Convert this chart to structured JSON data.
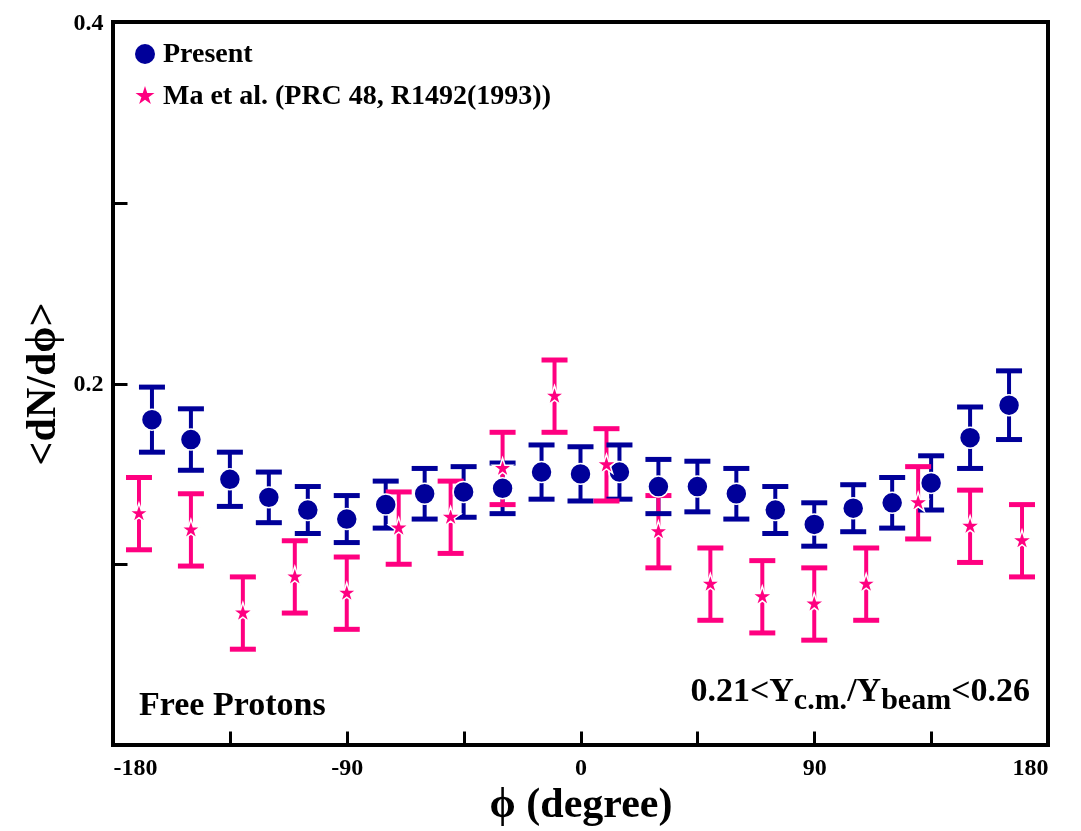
{
  "chart_data": {
    "type": "scatter",
    "xlabel": "ϕ (degree)",
    "ylabel": "<dN/dϕ>",
    "xlim": [
      -180,
      180
    ],
    "xticks": [
      -180,
      {
        "value": -135,
        "label": null
      },
      -90,
      {
        "value": -45,
        "label": null
      },
      0,
      {
        "value": 45,
        "label": null
      },
      90,
      {
        "value": 135,
        "label": null
      },
      180
    ],
    "ylim": [
      0,
      0.4
    ],
    "yticks": [
      {
        "value": 0.1,
        "label": null
      },
      0.2,
      {
        "value": 0.3,
        "label": null
      },
      0.4
    ],
    "grid": false,
    "legend": "top left",
    "annotations": [
      "Free Protons",
      "0.21<Y$_{c.m.}$/Y$_{beam}$<0.26"
    ],
    "series": [
      {
        "name": "Present",
        "color": "#000099",
        "marker": "circle",
        "x": [
          -165,
          -150,
          -135,
          -120,
          -105,
          -90,
          -75,
          -60,
          -45,
          -30,
          -15,
          0,
          15,
          30,
          45,
          60,
          75,
          90,
          105,
          120,
          135,
          150,
          165
        ],
        "values": [
          0.18,
          0.169,
          0.147,
          0.137,
          0.13,
          0.125,
          0.133,
          0.139,
          0.14,
          0.142,
          0.151,
          0.15,
          0.151,
          0.143,
          0.143,
          0.139,
          0.13,
          0.122,
          0.131,
          0.134,
          0.145,
          0.17,
          0.188
        ],
        "errors": [
          0.018,
          0.017,
          0.015,
          0.014,
          0.013,
          0.013,
          0.013,
          0.014,
          0.014,
          0.014,
          0.015,
          0.015,
          0.015,
          0.015,
          0.014,
          0.014,
          0.013,
          0.012,
          0.013,
          0.014,
          0.015,
          0.017,
          0.019
        ]
      },
      {
        "name": "Ma et al. (PRC 48, R1492(1993))",
        "color": "#ff0080",
        "marker": "star",
        "x": [
          -170,
          -150,
          -130,
          -110,
          -90,
          -70,
          -50,
          -30,
          -10,
          10,
          30,
          50,
          70,
          90,
          110,
          130,
          150,
          170
        ],
        "values": [
          0.128,
          0.119,
          0.073,
          0.093,
          0.084,
          0.12,
          0.126,
          0.153,
          0.193,
          0.155,
          0.118,
          0.089,
          0.082,
          0.078,
          0.089,
          0.134,
          0.121,
          0.113
        ],
        "errors": [
          0.02,
          0.02,
          0.02,
          0.02,
          0.02,
          0.02,
          0.02,
          0.02,
          0.02,
          0.02,
          0.02,
          0.02,
          0.02,
          0.02,
          0.02,
          0.02,
          0.02,
          0.02
        ]
      }
    ]
  }
}
